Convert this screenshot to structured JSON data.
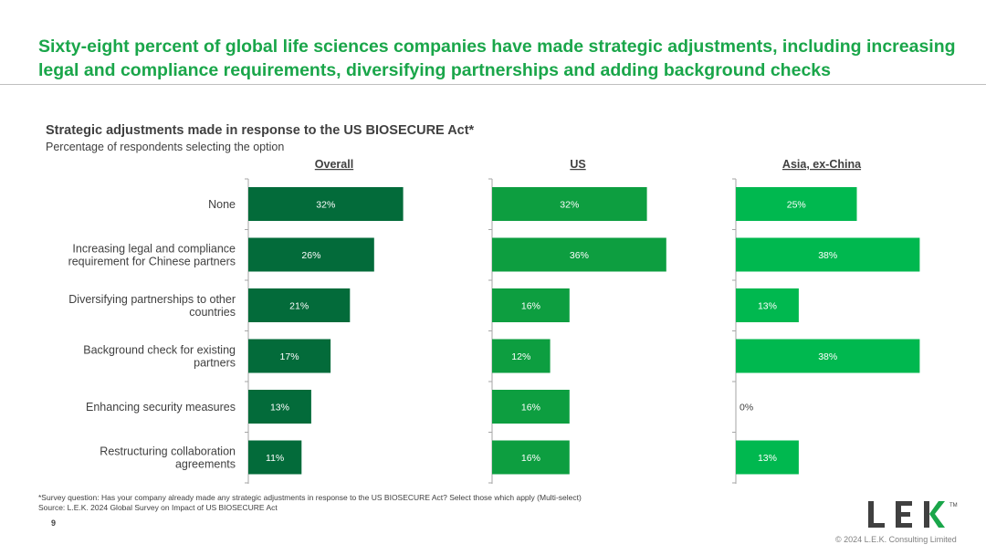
{
  "headline": "Sixty-eight percent of global life sciences companies have made strategic adjustments, including increasing legal and compliance requirements, diversifying partnerships and adding background checks",
  "footnote": "*Survey question: Has your company already made any strategic adjustments in response to the US BIOSECURE Act? Select those which apply (Multi-select)",
  "source": "Source:  L.E.K. 2024 Global Survey on Impact of US BIOSECURE Act",
  "page_number": "9",
  "copyright": "© 2024 L.E.K. Consulting Limited",
  "logo": {
    "text": "LEK",
    "tm": "TM"
  },
  "colors": {
    "headline": "#1aa64a",
    "overall": "#036b3a",
    "us": "#0d9e40",
    "asia": "#00b84f"
  },
  "chart_data": {
    "type": "bar",
    "orientation": "horizontal",
    "title": "Strategic adjustments made in response to the US BIOSECURE Act*",
    "subtitle": "Percentage of respondents selecting the option",
    "unit": "%",
    "xlim": [
      0,
      40
    ],
    "categories": [
      [
        "None"
      ],
      [
        "Increasing legal and compliance",
        "requirement for Chinese partners"
      ],
      [
        "Diversifying partnerships to other",
        "countries"
      ],
      [
        "Background check for existing",
        "partners"
      ],
      [
        "Enhancing security measures"
      ],
      [
        "Restructuring collaboration",
        "agreements"
      ]
    ],
    "series": [
      {
        "name": "Overall",
        "color": "#036b3a",
        "values": [
          32,
          26,
          21,
          17,
          13,
          11
        ]
      },
      {
        "name": "US",
        "color": "#0d9e40",
        "values": [
          32,
          36,
          16,
          12,
          16,
          16
        ]
      },
      {
        "name": "Asia, ex-China",
        "color": "#00b84f",
        "values": [
          25,
          38,
          13,
          38,
          0,
          13
        ]
      }
    ]
  }
}
